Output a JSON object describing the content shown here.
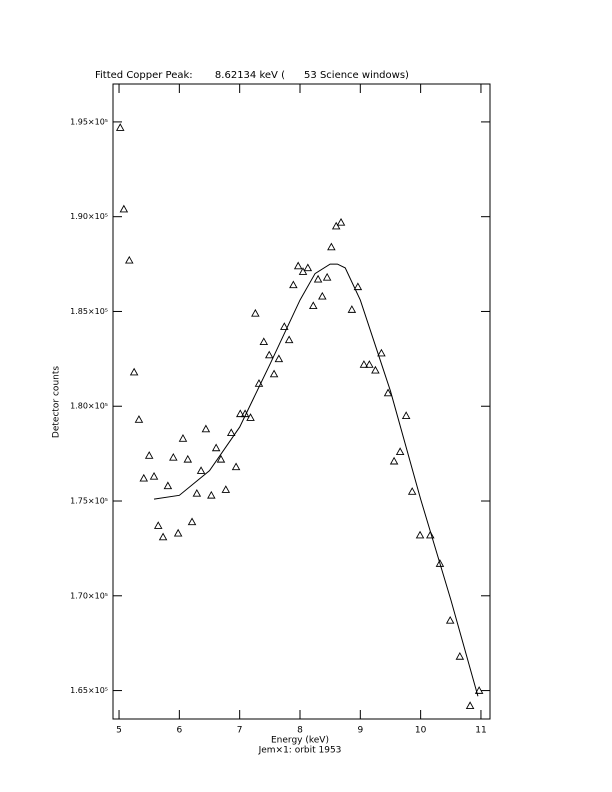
{
  "chart_data": {
    "type": "scatter",
    "title": "Fitted Copper Peak:       8.62134 keV (      53 Science windows)",
    "x_label": "Energy (keV)",
    "y_label": "Detector counts",
    "subtitle": "Jem×1: orbit 1953",
    "xlim": [
      4.9,
      11.15
    ],
    "ylim": [
      163500,
      197000
    ],
    "xticks": [
      5,
      6,
      7,
      8,
      9,
      10,
      11
    ],
    "yticks": [
      {
        "value": 165000,
        "label": "1.65×10⁵"
      },
      {
        "value": 170000,
        "label": "1.70×10⁵"
      },
      {
        "value": 175000,
        "label": "1.75×10⁵"
      },
      {
        "value": 180000,
        "label": "1.80×10⁵"
      },
      {
        "value": 185000,
        "label": "1.85×10⁵"
      },
      {
        "value": 190000,
        "label": "1.90×10⁵"
      },
      {
        "value": 195000,
        "label": "1.95×10⁵"
      }
    ],
    "series": [
      {
        "type": "scatter",
        "marker": "triangle",
        "color": "#000000",
        "x": [
          5.02,
          5.08,
          5.17,
          5.25,
          5.33,
          5.41,
          5.5,
          5.58,
          5.65,
          5.73,
          5.81,
          5.9,
          5.98,
          6.06,
          6.14,
          6.21,
          6.29,
          6.36,
          6.44,
          6.53,
          6.61,
          6.69,
          6.77,
          6.86,
          6.94,
          7.01,
          7.09,
          7.18,
          7.26,
          7.32,
          7.4,
          7.49,
          7.57,
          7.65,
          7.74,
          7.82,
          7.89,
          7.97,
          8.05,
          8.13,
          8.22,
          8.3,
          8.37,
          8.45,
          8.52,
          8.6,
          8.68,
          8.86,
          8.96,
          9.06,
          9.15,
          9.25,
          9.35,
          9.46,
          9.56,
          9.66,
          9.76,
          9.86,
          9.99,
          10.16,
          10.32,
          10.49,
          10.65,
          10.82,
          10.97
        ],
        "values": [
          194700,
          190400,
          187700,
          181800,
          179300,
          176200,
          177400,
          176300,
          173700,
          173100,
          175800,
          177300,
          173300,
          178300,
          177200,
          173900,
          175400,
          176600,
          178800,
          175300,
          177800,
          177200,
          175600,
          178600,
          176800,
          179600,
          179600,
          179400,
          184900,
          181200,
          183400,
          182700,
          181700,
          182500,
          184200,
          183500,
          186400,
          187400,
          187100,
          187300,
          185300,
          186700,
          185800,
          186800,
          188400,
          189500,
          189700,
          185100,
          186300,
          182200,
          182200,
          181900,
          182800,
          180700,
          177100,
          177600,
          179500,
          175500,
          173200,
          173200,
          171700,
          168700,
          166800,
          164200,
          165000
        ]
      },
      {
        "type": "line",
        "color": "#000000",
        "x": [
          5.58,
          6.0,
          6.5,
          7.0,
          7.5,
          8.0,
          8.25,
          8.5,
          8.62,
          8.75,
          9.0,
          9.5,
          10.0,
          10.5,
          10.95
        ],
        "values": [
          175100,
          175300,
          176600,
          178900,
          182200,
          185600,
          187000,
          187500,
          187500,
          187300,
          185600,
          180800,
          175100,
          169800,
          164700
        ]
      }
    ]
  }
}
